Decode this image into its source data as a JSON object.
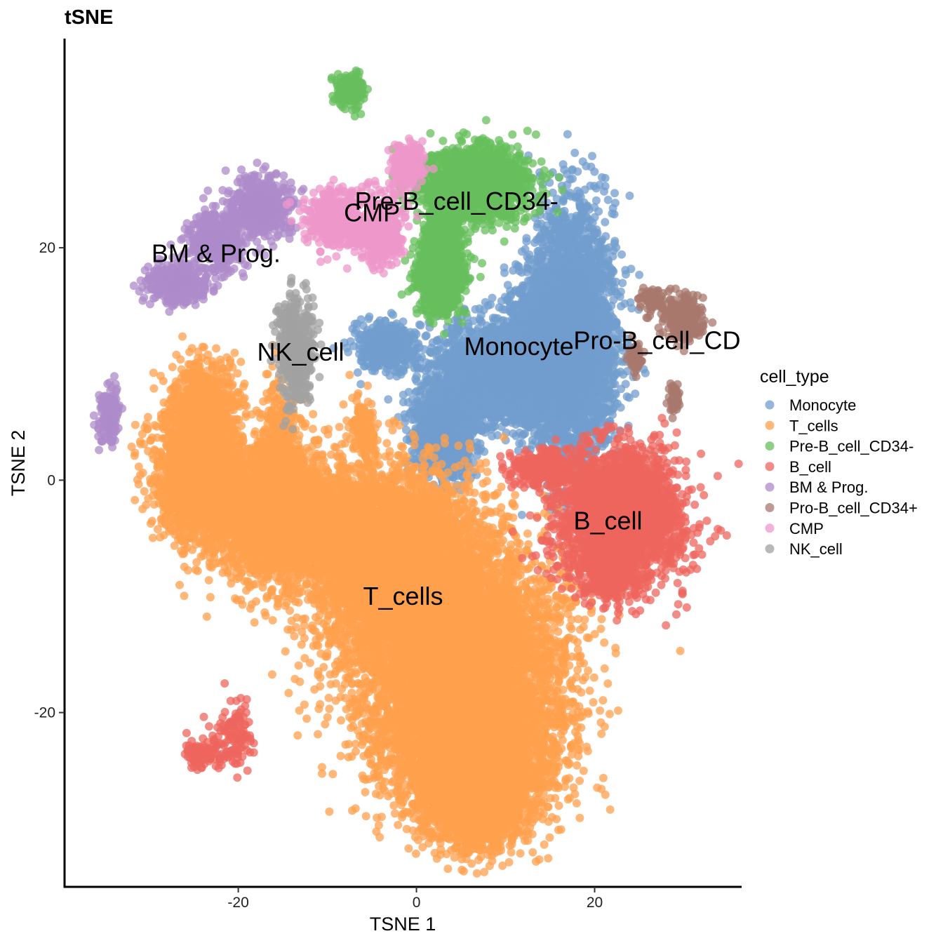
{
  "chart_data": {
    "type": "scatter",
    "title": "tSNE",
    "xlabel": "TSNE 1",
    "ylabel": "TSNE 2",
    "xlim": [
      -39.5,
      36.5
    ],
    "ylim": [
      -35,
      38
    ],
    "xticks": [
      -20,
      0,
      20
    ],
    "yticks": [
      -20,
      0,
      20
    ],
    "grid": false,
    "legend": {
      "title": "cell_type",
      "placement": "right"
    },
    "series": [
      {
        "name": "Monocyte",
        "color": "#729ECE",
        "regions": [
          [
            17.5,
            12.5,
            3.5,
            8.5,
            3500
          ],
          [
            10.0,
            9.0,
            7.5,
            3.5,
            2500
          ],
          [
            3.0,
            4.0,
            2.8,
            3.0,
            900
          ],
          [
            -3.5,
            11.5,
            2.5,
            1.5,
            500
          ],
          [
            13.5,
            14.0,
            3.0,
            3.0,
            500
          ]
        ]
      },
      {
        "name": "T_cells",
        "color": "#FFA04D",
        "regions": [
          [
            -24.0,
            0.0,
            4.0,
            4.0,
            2000
          ],
          [
            -24.0,
            6.0,
            3.0,
            3.5,
            900
          ],
          [
            -15.5,
            2.0,
            2.0,
            4.5,
            500
          ],
          [
            -15.0,
            -3.0,
            7.0,
            4.0,
            2500
          ],
          [
            -3.0,
            -6.0,
            9.0,
            5.5,
            4000
          ],
          [
            4.0,
            -14.0,
            10.0,
            6.5,
            4500
          ],
          [
            6.0,
            -23.0,
            8.0,
            5.0,
            3500
          ],
          [
            6.5,
            -28.5,
            4.5,
            2.5,
            1200
          ],
          [
            -6.0,
            4.0,
            1.2,
            2.2,
            150
          ]
        ]
      },
      {
        "name": "Pre-B_cell_CD34-",
        "color": "#67BF5C",
        "regions": [
          [
            6.5,
            25.5,
            5.0,
            2.5,
            1500
          ],
          [
            2.8,
            17.5,
            2.0,
            2.5,
            900
          ],
          [
            3.0,
            21.0,
            1.5,
            2.5,
            600
          ],
          [
            -7.5,
            33.5,
            1.4,
            1.2,
            200
          ]
        ]
      },
      {
        "name": "B_cell",
        "color": "#ED665D",
        "regions": [
          [
            23.0,
            -3.0,
            5.5,
            4.5,
            2500
          ],
          [
            21.5,
            -8.0,
            2.5,
            2.0,
            400
          ],
          [
            14.0,
            1.0,
            3.0,
            1.2,
            300
          ],
          [
            -20.5,
            -22.0,
            1.8,
            2.5,
            120
          ],
          [
            -24.0,
            -23.5,
            2.0,
            1.0,
            100
          ]
        ]
      },
      {
        "name": "BM & Prog.",
        "color": "#AD8BC9",
        "regions": [
          [
            -17.5,
            23.5,
            3.0,
            2.0,
            600
          ],
          [
            -22.5,
            20.5,
            2.5,
            2.0,
            450
          ],
          [
            -27.0,
            17.0,
            2.5,
            1.5,
            350
          ],
          [
            -34.5,
            5.5,
            0.9,
            2.0,
            150
          ]
        ]
      },
      {
        "name": "Pro-B_cell_CD34+",
        "color": "#A8786E",
        "regions": [
          [
            30.0,
            14.0,
            1.6,
            1.6,
            250
          ],
          [
            26.5,
            15.5,
            1.0,
            0.8,
            80
          ],
          [
            24.5,
            10.5,
            0.6,
            1.0,
            60
          ],
          [
            29.0,
            7.0,
            0.5,
            1.0,
            50
          ]
        ]
      },
      {
        "name": "CMP",
        "color": "#ED97CA",
        "regions": [
          [
            -9.0,
            22.5,
            2.5,
            2.0,
            450
          ],
          [
            -4.0,
            21.5,
            2.0,
            2.5,
            400
          ],
          [
            -1.0,
            27.0,
            1.5,
            1.5,
            200
          ]
        ]
      },
      {
        "name": "NK_cell",
        "color": "#A2A2A2",
        "regions": [
          [
            -13.5,
            11.0,
            1.5,
            3.5,
            500
          ]
        ]
      }
    ],
    "labels": [
      {
        "text": "Pre-B_cell_CD34-",
        "x": 4.5,
        "y": 24.0
      },
      {
        "text": "CMP",
        "x": -5.0,
        "y": 23.0
      },
      {
        "text": "BM & Prog.",
        "x": -22.5,
        "y": 19.5
      },
      {
        "text": "NK_cell",
        "x": -13.0,
        "y": 11.0
      },
      {
        "text": "Monocyte",
        "x": 11.5,
        "y": 11.5
      },
      {
        "text": "Pro-B_cell_CD",
        "x": 27.0,
        "y": 12.0
      },
      {
        "text": "B_cell",
        "x": 21.5,
        "y": -3.5
      },
      {
        "text": "T_cells",
        "x": -1.5,
        "y": -10.0
      }
    ]
  }
}
